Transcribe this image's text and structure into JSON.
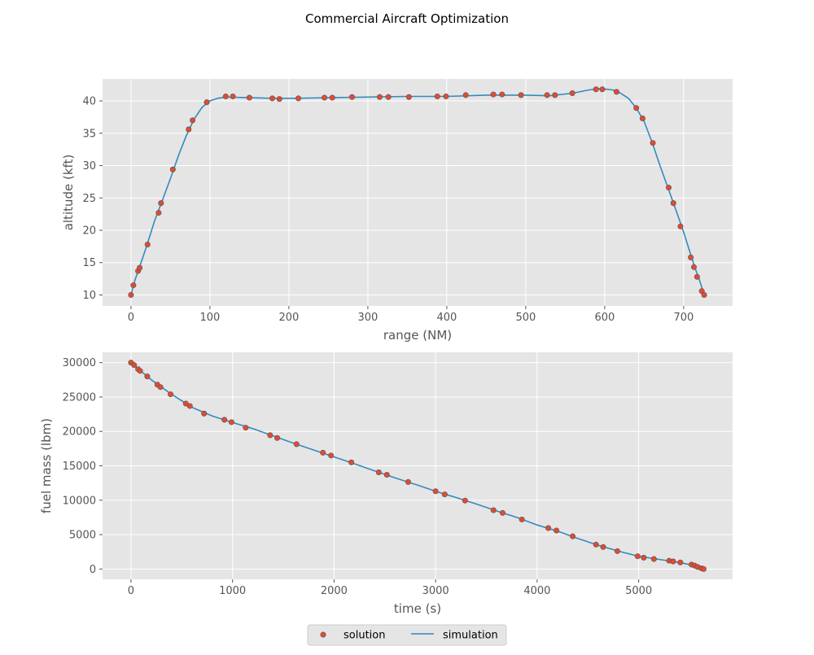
{
  "figure": {
    "suptitle": "Commercial Aircraft Optimization"
  },
  "legend": {
    "placement": "bottom-center",
    "entries": [
      {
        "label": "solution",
        "kind": "marker",
        "color": "#E24A33"
      },
      {
        "label": "simulation",
        "kind": "line",
        "color": "#348ABD"
      }
    ]
  },
  "colors": {
    "axes_bg": "#E5E5E5",
    "grid": "#FFFFFF",
    "solution": "#E24A33",
    "solution_edge": "#555555",
    "simulation": "#348ABD",
    "tick": "#555555"
  },
  "chart_data": [
    {
      "type": "line",
      "xlabel": "range (NM)",
      "ylabel": "altitude (kft)",
      "xlim": [
        -36,
        762
      ],
      "ylim": [
        8.3,
        43.4
      ],
      "xticks": [
        0,
        100,
        200,
        300,
        400,
        500,
        600,
        700
      ],
      "yticks": [
        10,
        15,
        20,
        25,
        30,
        35,
        40
      ],
      "grid": true,
      "series": [
        {
          "name": "solution",
          "kind": "scatter",
          "x": [
            0,
            3,
            9,
            11,
            21,
            35,
            38,
            53,
            73,
            78,
            96,
            120,
            129,
            150,
            179,
            188,
            212,
            245,
            255,
            280,
            315,
            326,
            352,
            388,
            399,
            424,
            459,
            470,
            494,
            527,
            537,
            559,
            589,
            597,
            615,
            640,
            648,
            661,
            681,
            687,
            696,
            709,
            713,
            717,
            723,
            726
          ],
          "y": [
            10.0,
            11.5,
            13.7,
            14.2,
            17.8,
            22.7,
            24.2,
            29.4,
            35.6,
            37.0,
            39.8,
            40.7,
            40.7,
            40.5,
            40.4,
            40.3,
            40.4,
            40.5,
            40.5,
            40.6,
            40.6,
            40.6,
            40.6,
            40.7,
            40.7,
            40.9,
            41.0,
            41.0,
            40.9,
            40.9,
            40.9,
            41.2,
            41.8,
            41.8,
            41.4,
            38.9,
            37.3,
            33.5,
            26.6,
            24.2,
            20.6,
            15.8,
            14.3,
            12.8,
            10.6,
            10.0
          ]
        },
        {
          "name": "simulation",
          "kind": "line",
          "x": [
            0,
            5,
            10,
            20,
            30,
            40,
            50,
            60,
            70,
            80,
            90,
            100,
            110,
            120,
            150,
            180,
            210,
            250,
            300,
            350,
            400,
            450,
            500,
            530,
            560,
            580,
            595,
            610,
            620,
            630,
            640,
            650,
            660,
            670,
            680,
            690,
            700,
            710,
            715,
            720,
            726
          ],
          "y": [
            10.0,
            12.3,
            14.0,
            17.6,
            21.5,
            24.7,
            28.0,
            31.5,
            34.6,
            37.2,
            39.0,
            40.0,
            40.4,
            40.6,
            40.5,
            40.4,
            40.4,
            40.5,
            40.6,
            40.7,
            40.7,
            40.9,
            40.9,
            40.8,
            41.2,
            41.7,
            41.9,
            41.7,
            41.2,
            40.4,
            38.9,
            36.8,
            33.6,
            30.0,
            26.6,
            23.2,
            19.7,
            15.8,
            14.0,
            12.3,
            10.0
          ]
        }
      ]
    },
    {
      "type": "line",
      "xlabel": "time (s)",
      "ylabel": "fuel mass (lbm)",
      "xlim": [
        -280,
        5925
      ],
      "ylim": [
        -1500,
        31500
      ],
      "xticks": [
        0,
        1000,
        2000,
        3000,
        4000,
        5000
      ],
      "yticks": [
        0,
        5000,
        10000,
        15000,
        20000,
        25000,
        30000
      ],
      "grid": true,
      "series": [
        {
          "name": "solution",
          "kind": "scatter",
          "x": [
            0,
            30,
            70,
            90,
            160,
            260,
            290,
            390,
            540,
            580,
            720,
            920,
            990,
            1130,
            1370,
            1440,
            1630,
            1890,
            1970,
            2170,
            2440,
            2520,
            2730,
            3000,
            3090,
            3290,
            3570,
            3660,
            3850,
            4110,
            4190,
            4350,
            4580,
            4650,
            4790,
            4990,
            5050,
            5150,
            5300,
            5340,
            5410,
            5520,
            5550,
            5580,
            5620,
            5640
          ],
          "y": [
            30000,
            29650,
            29050,
            28800,
            28000,
            26800,
            26450,
            25400,
            24050,
            23700,
            22600,
            21700,
            21350,
            20550,
            19450,
            19050,
            18150,
            16900,
            16500,
            15500,
            14050,
            13700,
            12650,
            11300,
            10850,
            9950,
            8550,
            8150,
            7200,
            5950,
            5600,
            4750,
            3550,
            3200,
            2600,
            1850,
            1650,
            1450,
            1200,
            1100,
            950,
            650,
            500,
            300,
            100,
            0
          ]
        },
        {
          "name": "simulation",
          "kind": "line",
          "x": [
            0,
            100,
            200,
            300,
            400,
            600,
            800,
            1000,
            1200,
            1400,
            1600,
            1800,
            2000,
            2200,
            2400,
            2600,
            2800,
            3000,
            3200,
            3400,
            3600,
            3800,
            4000,
            4200,
            4400,
            4600,
            4800,
            5000,
            5200,
            5400,
            5500,
            5600,
            5640
          ],
          "y": [
            30000,
            28750,
            27500,
            26450,
            25400,
            23500,
            22250,
            21300,
            20400,
            19350,
            18300,
            17300,
            16300,
            15300,
            14250,
            13250,
            12300,
            11300,
            10400,
            9450,
            8450,
            7500,
            6400,
            5500,
            4450,
            3450,
            2600,
            1850,
            1400,
            950,
            650,
            200,
            0
          ]
        }
      ]
    }
  ]
}
